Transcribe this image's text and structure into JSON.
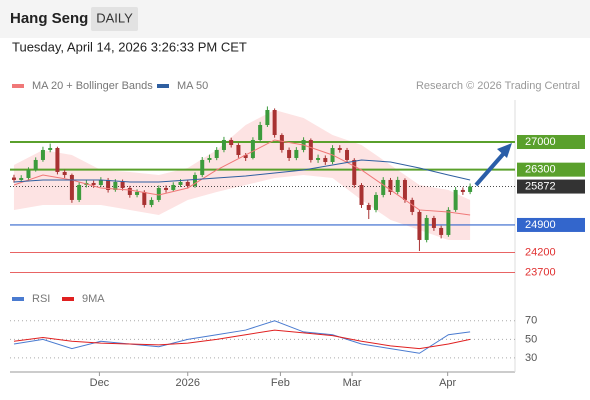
{
  "header": {
    "title": "Hang Seng",
    "timeframe": "DAILY",
    "datetime": "Tuesday, April 14, 2026 3:26:33 PM CET",
    "credit": "Research © 2026 Trading Central"
  },
  "chart_data": [
    {
      "type": "candlestick",
      "up_color": "#3c9b3c",
      "down_color": "#a83232",
      "open": [
        26100,
        26039,
        26089,
        26292,
        26545,
        26798,
        26848,
        26241,
        26165,
        25533,
        25912,
        25963,
        25912,
        26039,
        25786,
        25988,
        25836,
        25659,
        25735,
        25406,
        25533,
        25836,
        25786,
        25912,
        25988,
        25887,
        26165,
        26545,
        26595,
        26798,
        27051,
        26924,
        26671,
        26595,
        27051,
        27430,
        27810,
        27177,
        26798,
        26595,
        26798,
        27051,
        26545,
        26595,
        26494,
        26848,
        26798,
        26545,
        25912,
        25406,
        25280,
        25659,
        26039,
        25735,
        26039,
        25533,
        25229,
        24520,
        25077,
        24824,
        24647,
        25280,
        25786,
        25735
      ],
      "high": [
        26170,
        26160,
        26360,
        26610,
        26880,
        26960,
        26880,
        26300,
        26200,
        25980,
        26040,
        26020,
        26110,
        26090,
        26060,
        26050,
        25890,
        25800,
        25780,
        25600,
        25900,
        25900,
        25980,
        26060,
        26040,
        26230,
        26620,
        26680,
        26870,
        27130,
        27110,
        26970,
        26720,
        27120,
        27510,
        27900,
        27850,
        27220,
        26860,
        26870,
        27120,
        27090,
        26680,
        26660,
        26920,
        26920,
        26850,
        26590,
        25960,
        25460,
        25730,
        26110,
        26090,
        26120,
        26080,
        25590,
        25280,
        25150,
        25130,
        24880,
        25350,
        25860,
        25850,
        25950
      ],
      "low": [
        25970,
        25980,
        26030,
        26250,
        26500,
        26740,
        26180,
        26090,
        25460,
        25480,
        25850,
        25840,
        25870,
        25720,
        25740,
        25770,
        25590,
        25600,
        25340,
        25350,
        25480,
        25720,
        25740,
        25860,
        25820,
        25840,
        26110,
        26480,
        26540,
        26740,
        26860,
        26600,
        26520,
        26560,
        27000,
        27380,
        27110,
        26730,
        26520,
        26540,
        26740,
        26480,
        26470,
        26420,
        26440,
        26730,
        26480,
        25840,
        25330,
        25050,
        25220,
        25600,
        25660,
        25680,
        25460,
        25150,
        24240,
        24460,
        24750,
        24560,
        24600,
        25230,
        25660,
        25680
      ],
      "close": [
        26039,
        26089,
        26292,
        26545,
        26798,
        26848,
        26241,
        26165,
        25533,
        25912,
        25963,
        25912,
        26039,
        25786,
        25988,
        25836,
        25659,
        25735,
        25406,
        25533,
        25836,
        25786,
        25912,
        25988,
        25887,
        26165,
        26545,
        26595,
        26798,
        27051,
        26924,
        26671,
        26595,
        27051,
        27430,
        27810,
        27177,
        26798,
        26595,
        26798,
        27051,
        26545,
        26595,
        26494,
        26848,
        26798,
        26545,
        25912,
        25406,
        25280,
        25659,
        26039,
        25735,
        26039,
        25533,
        25229,
        24520,
        25077,
        24824,
        24647,
        25280,
        25786,
        25735,
        25872
      ],
      "overlays": [
        {
          "name": "MA 20 + Bollinger Bands",
          "color": "#f07878",
          "band_color": "#fde3e3",
          "x": [
            0,
            4,
            8,
            12,
            16,
            20,
            24,
            28,
            32,
            36,
            40,
            44,
            48,
            52,
            56,
            60,
            63
          ],
          "values": [
            25912,
            26165,
            26039,
            25836,
            25786,
            25659,
            25836,
            26292,
            26671,
            27051,
            26924,
            26671,
            26292,
            25786,
            25280,
            25229,
            25153
          ],
          "upper": [
            26418,
            26798,
            26671,
            26292,
            26241,
            26165,
            26342,
            26798,
            27430,
            27810,
            27607,
            27177,
            26924,
            26418,
            25912,
            25786,
            25533
          ],
          "lower": [
            25280,
            25406,
            25406,
            25406,
            25280,
            25153,
            25533,
            25735,
            25912,
            26089,
            26165,
            26089,
            25533,
            25027,
            24773,
            24520,
            24520
          ]
        },
        {
          "name": "MA 50",
          "color": "#2f5fa0",
          "x": [
            0,
            4,
            8,
            12,
            16,
            20,
            24,
            28,
            32,
            36,
            40,
            44,
            48,
            52,
            56,
            60,
            63
          ],
          "values": [
            25988,
            26039,
            26039,
            26039,
            25988,
            25988,
            26039,
            26089,
            26140,
            26216,
            26292,
            26418,
            26545,
            26494,
            26342,
            26165,
            26039
          ]
        }
      ],
      "levels": [
        {
          "value": 27000,
          "color": "#5aa02c",
          "line": "solid",
          "boxed": true
        },
        {
          "value": 26300,
          "color": "#5aa02c",
          "line": "solid",
          "boxed": true
        },
        {
          "value": 25872,
          "color": "#333333",
          "line": "dotted",
          "boxed": true
        },
        {
          "value": 24900,
          "color": "#3366cc",
          "line": "solid",
          "boxed": true
        },
        {
          "value": 24200,
          "color": "#e03030",
          "line": "thin",
          "boxed": false
        },
        {
          "value": 23700,
          "color": "#e03030",
          "line": "thin",
          "boxed": false
        }
      ],
      "xlim": [
        -0.55,
        69.2
      ],
      "ylim": [
        23380,
        28063
      ]
    },
    {
      "type": "line",
      "series": [
        {
          "name": "RSI",
          "color": "#4a7bd0",
          "x": [
            0,
            4,
            8,
            12,
            16,
            20,
            24,
            28,
            32,
            36,
            40,
            44,
            48,
            52,
            56,
            60,
            63
          ],
          "values": [
            45,
            50,
            40,
            48,
            45,
            42,
            50,
            55,
            60,
            70,
            58,
            55,
            45,
            40,
            35,
            55,
            58
          ]
        },
        {
          "name": "9MA",
          "color": "#e02020",
          "x": [
            0,
            4,
            8,
            12,
            16,
            20,
            24,
            28,
            32,
            36,
            40,
            44,
            48,
            52,
            56,
            60,
            63
          ],
          "values": [
            48,
            52,
            48,
            46,
            45,
            44,
            46,
            50,
            55,
            60,
            57,
            54,
            48,
            43,
            40,
            45,
            50
          ]
        }
      ],
      "xlim": [
        -0.55,
        69.2
      ],
      "ylim": [
        17,
        87
      ],
      "yticks": [
        30,
        50,
        70
      ],
      "grid": true,
      "xticks": [
        {
          "value": 11.8,
          "label": "Dec"
        },
        {
          "value": 24,
          "label": "2026"
        },
        {
          "value": 36.8,
          "label": "Feb"
        },
        {
          "value": 46.7,
          "label": "Mar"
        },
        {
          "value": 59.9,
          "label": "Apr"
        }
      ]
    }
  ]
}
